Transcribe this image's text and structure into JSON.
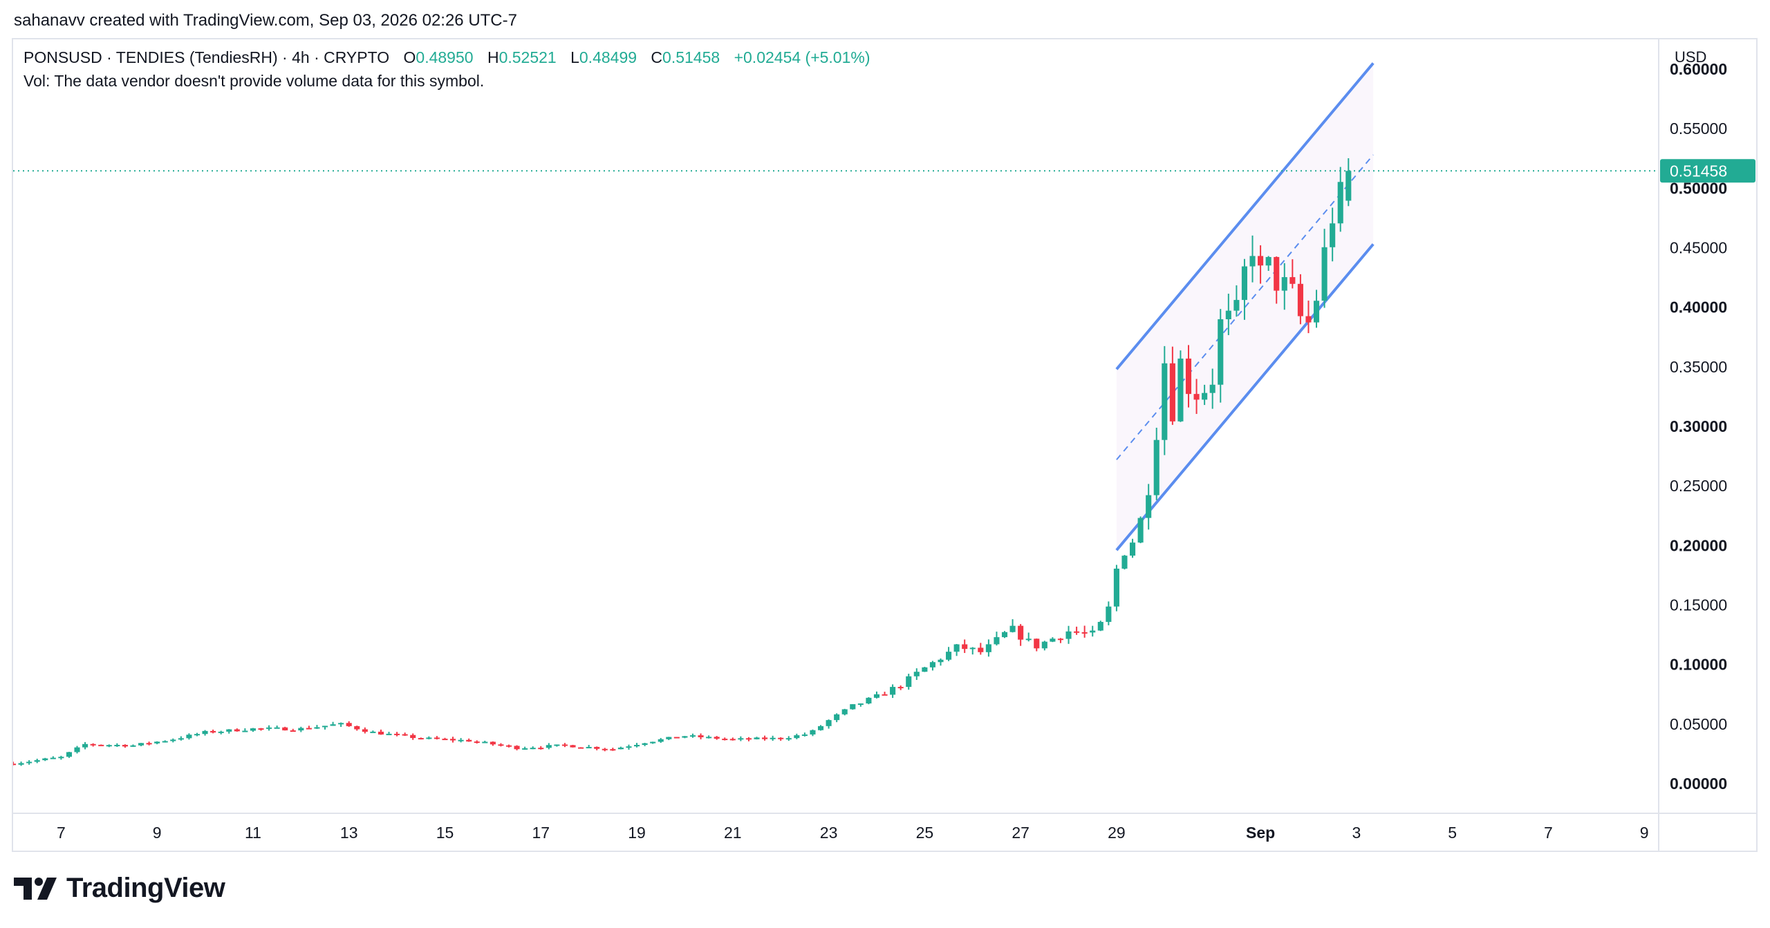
{
  "header": {
    "credit": "sahanavv created with TradingView.com, Sep 03, 2026 02:26 UTC-7"
  },
  "legend": {
    "symbol": "PONSUSD · TENDIES (TendiesRH) · 4h · CRYPTO",
    "open_label": "O",
    "open": "0.48950",
    "high_label": "H",
    "high": "0.52521",
    "low_label": "L",
    "low": "0.48499",
    "close_label": "C",
    "close": "0.51458",
    "change": "+0.02454 (+5.01%)",
    "vol_note": "Vol: The data vendor doesn't provide volume data for this symbol."
  },
  "axis": {
    "currency": "USD"
  },
  "brand": {
    "name": "TradingView",
    "logo_icon": "tradingview-logo-icon"
  },
  "colors": {
    "up": "#22ab94",
    "down": "#f23645",
    "channel": "#5b8def",
    "price_line": "#22ab94"
  },
  "chart_data": {
    "type": "candlestick",
    "symbol": "PONSUSD",
    "interval": "4h",
    "ylim": [
      -0.025,
      0.625
    ],
    "xlim_days": [
      6.0,
      40.3
    ],
    "y_ticks": [
      "0.60000",
      "0.55000",
      "0.50000",
      "0.45000",
      "0.40000",
      "0.35000",
      "0.30000",
      "0.25000",
      "0.20000",
      "0.15000",
      "0.10000",
      "0.05000",
      "0.00000"
    ],
    "y_bold_ticks": [
      "0.60000",
      "0.50000",
      "0.40000",
      "0.30000",
      "0.20000",
      "0.10000",
      "0.00000"
    ],
    "x_ticks": [
      {
        "label": "7",
        "day": 7
      },
      {
        "label": "9",
        "day": 9
      },
      {
        "label": "11",
        "day": 11
      },
      {
        "label": "13",
        "day": 13
      },
      {
        "label": "15",
        "day": 15
      },
      {
        "label": "17",
        "day": 17
      },
      {
        "label": "19",
        "day": 19
      },
      {
        "label": "21",
        "day": 21
      },
      {
        "label": "23",
        "day": 23
      },
      {
        "label": "25",
        "day": 25
      },
      {
        "label": "27",
        "day": 27
      },
      {
        "label": "29",
        "day": 29
      },
      {
        "label": "Sep",
        "day": 32
      },
      {
        "label": "3",
        "day": 34
      },
      {
        "label": "5",
        "day": 36
      },
      {
        "label": "7",
        "day": 38
      },
      {
        "label": "9",
        "day": 40
      }
    ],
    "last_price": 0.51458,
    "last_price_label": "0.51458",
    "channel": {
      "upper": [
        [
          29.0,
          0.348
        ],
        [
          34.35,
          0.605
        ]
      ],
      "median": [
        [
          29.0,
          0.272
        ],
        [
          34.35,
          0.528
        ]
      ],
      "lower": [
        [
          29.0,
          0.196
        ],
        [
          34.35,
          0.453
        ]
      ]
    },
    "anchors": [
      [
        6.0,
        0.017
      ],
      [
        7.0,
        0.022
      ],
      [
        7.5,
        0.033
      ],
      [
        8.5,
        0.032
      ],
      [
        9.3,
        0.037
      ],
      [
        10.0,
        0.043
      ],
      [
        11.0,
        0.046
      ],
      [
        12.0,
        0.046
      ],
      [
        12.8,
        0.05
      ],
      [
        13.5,
        0.043
      ],
      [
        14.5,
        0.038
      ],
      [
        15.5,
        0.036
      ],
      [
        16.5,
        0.03
      ],
      [
        17.5,
        0.032
      ],
      [
        18.5,
        0.029
      ],
      [
        19.2,
        0.035
      ],
      [
        20.0,
        0.04
      ],
      [
        21.0,
        0.037
      ],
      [
        22.0,
        0.038
      ],
      [
        22.6,
        0.042
      ],
      [
        23.0,
        0.053
      ],
      [
        23.5,
        0.065
      ],
      [
        24.0,
        0.073
      ],
      [
        24.5,
        0.083
      ],
      [
        25.0,
        0.097
      ],
      [
        25.7,
        0.115
      ],
      [
        26.2,
        0.11
      ],
      [
        26.8,
        0.13
      ],
      [
        27.3,
        0.115
      ],
      [
        28.0,
        0.128
      ],
      [
        28.5,
        0.125
      ],
      [
        28.8,
        0.14
      ],
      [
        29.05,
        0.19
      ],
      [
        29.35,
        0.205
      ],
      [
        29.6,
        0.232
      ],
      [
        29.8,
        0.285
      ],
      [
        30.0,
        0.355
      ],
      [
        30.2,
        0.305
      ],
      [
        30.35,
        0.36
      ],
      [
        30.55,
        0.325
      ],
      [
        30.8,
        0.33
      ],
      [
        31.0,
        0.34
      ],
      [
        31.2,
        0.395
      ],
      [
        31.45,
        0.385
      ],
      [
        31.65,
        0.425
      ],
      [
        31.8,
        0.46
      ],
      [
        31.95,
        0.425
      ],
      [
        32.2,
        0.435
      ],
      [
        32.4,
        0.415
      ],
      [
        32.6,
        0.42
      ],
      [
        32.8,
        0.392
      ],
      [
        33.05,
        0.385
      ],
      [
        33.2,
        0.415
      ],
      [
        33.4,
        0.46
      ],
      [
        33.6,
        0.495
      ],
      [
        33.75,
        0.489
      ],
      [
        33.85,
        0.5146
      ]
    ]
  }
}
